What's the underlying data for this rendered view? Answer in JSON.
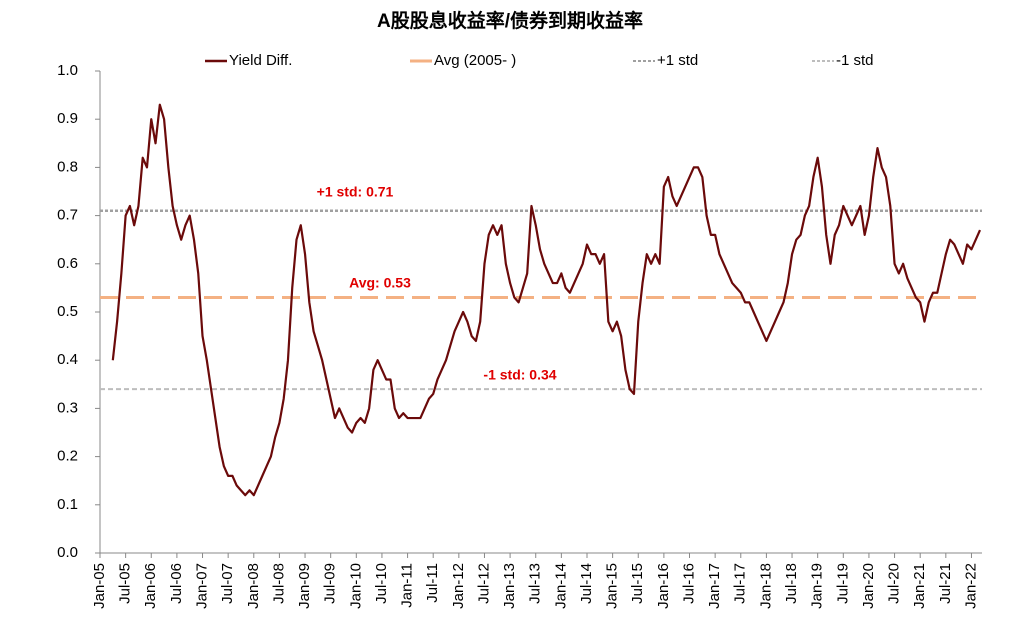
{
  "chart_data": {
    "type": "line",
    "title": "A股股息收益率/债券到期收益率",
    "categories": [
      "Jan-05",
      null,
      null,
      null,
      null,
      null,
      "Jul-05",
      null,
      null,
      null,
      null,
      null,
      "Jan-06",
      null,
      null,
      null,
      null,
      null,
      "Jul-06",
      null,
      null,
      null,
      null,
      null,
      "Jan-07",
      null,
      null,
      null,
      null,
      null,
      "Jul-07",
      null,
      null,
      null,
      null,
      null,
      "Jan-08",
      null,
      null,
      null,
      null,
      null,
      "Jul-08",
      null,
      null,
      null,
      null,
      null,
      "Jan-09",
      null,
      null,
      null,
      null,
      null,
      "Jul-09",
      null,
      null,
      null,
      null,
      null,
      "Jan-10",
      null,
      null,
      null,
      null,
      null,
      "Jul-10",
      null,
      null,
      null,
      null,
      null,
      "Jan-11",
      null,
      null,
      null,
      null,
      null,
      "Jul-11",
      null,
      null,
      null,
      null,
      null,
      "Jan-12",
      null,
      null,
      null,
      null,
      null,
      "Jul-12",
      null,
      null,
      null,
      null,
      null,
      "Jan-13",
      null,
      null,
      null,
      null,
      null,
      "Jul-13",
      null,
      null,
      null,
      null,
      null,
      "Jan-14",
      null,
      null,
      null,
      null,
      null,
      "Jul-14",
      null,
      null,
      null,
      null,
      null,
      "Jan-15",
      null,
      null,
      null,
      null,
      null,
      "Jul-15",
      null,
      null,
      null,
      null,
      null,
      "Jan-16",
      null,
      null,
      null,
      null,
      null,
      "Jul-16",
      null,
      null,
      null,
      null,
      null,
      "Jan-17",
      null,
      null,
      null,
      null,
      null,
      "Jul-17",
      null,
      null,
      null,
      null,
      null,
      "Jan-18",
      null,
      null,
      null,
      null,
      null,
      "Jul-18",
      null,
      null,
      null,
      null,
      null,
      "Jan-19",
      null,
      null,
      null,
      null,
      null,
      "Jul-19",
      null,
      null,
      null,
      null,
      null,
      "Jan-20",
      null,
      null,
      null,
      null,
      null,
      "Jul-20",
      null,
      null,
      null,
      null,
      null,
      "Jan-21",
      null,
      null,
      null,
      null,
      null,
      "Jul-21",
      null,
      null,
      null,
      null,
      null,
      "Jan-22",
      null,
      null
    ],
    "series": [
      {
        "name": "Yield Diff.",
        "color": "#6b0a0a",
        "values": [
          null,
          null,
          null,
          0.4,
          0.48,
          0.58,
          0.7,
          0.72,
          0.68,
          0.72,
          0.82,
          0.8,
          0.9,
          0.85,
          0.93,
          0.9,
          0.8,
          0.72,
          0.68,
          0.65,
          0.68,
          0.7,
          0.65,
          0.58,
          0.45,
          0.4,
          0.34,
          0.28,
          0.22,
          0.18,
          0.16,
          0.16,
          0.14,
          0.13,
          0.12,
          0.13,
          0.12,
          0.14,
          0.16,
          0.18,
          0.2,
          0.24,
          0.27,
          0.32,
          0.4,
          0.55,
          0.65,
          0.68,
          0.62,
          0.52,
          0.46,
          0.43,
          0.4,
          0.36,
          0.32,
          0.28,
          0.3,
          0.28,
          0.26,
          0.25,
          0.27,
          0.28,
          0.27,
          0.3,
          0.38,
          0.4,
          0.38,
          0.36,
          0.36,
          0.3,
          0.28,
          0.29,
          0.28,
          0.28,
          0.28,
          0.28,
          0.3,
          0.32,
          0.33,
          0.36,
          0.38,
          0.4,
          0.43,
          0.46,
          0.48,
          0.5,
          0.48,
          0.45,
          0.44,
          0.48,
          0.6,
          0.66,
          0.68,
          0.66,
          0.68,
          0.6,
          0.56,
          0.53,
          0.52,
          0.55,
          0.58,
          0.72,
          0.68,
          0.63,
          0.6,
          0.58,
          0.56,
          0.56,
          0.58,
          0.55,
          0.54,
          0.56,
          0.58,
          0.6,
          0.64,
          0.62,
          0.62,
          0.6,
          0.62,
          0.48,
          0.46,
          0.48,
          0.45,
          0.38,
          0.34,
          0.33,
          0.48,
          0.56,
          0.62,
          0.6,
          0.62,
          0.6,
          0.76,
          0.78,
          0.74,
          0.72,
          0.74,
          0.76,
          0.78,
          0.8,
          0.8,
          0.78,
          0.7,
          0.66,
          0.66,
          0.62,
          0.6,
          0.58,
          0.56,
          0.55,
          0.54,
          0.52,
          0.52,
          0.5,
          0.48,
          0.46,
          0.44,
          0.46,
          0.48,
          0.5,
          0.52,
          0.56,
          0.62,
          0.65,
          0.66,
          0.7,
          0.72,
          0.78,
          0.82,
          0.76,
          0.66,
          0.6,
          0.66,
          0.68,
          0.72,
          0.7,
          0.68,
          0.7,
          0.72,
          0.66,
          0.7,
          0.78,
          0.84,
          0.8,
          0.78,
          0.72,
          0.6,
          0.58,
          0.6,
          0.57,
          0.55,
          0.53,
          0.52,
          0.48,
          0.52,
          0.54,
          0.54,
          0.58,
          0.62,
          0.65,
          0.64,
          0.62,
          0.6,
          0.64,
          0.63,
          0.65,
          0.67
        ]
      }
    ],
    "reference_lines": [
      {
        "name": "Avg (2005- )",
        "value": 0.53,
        "color": "#f4b183",
        "dash": "18 8",
        "width": 3,
        "annotation": "Avg: 0.53"
      },
      {
        "name": "+1 std",
        "value": 0.71,
        "color": "#a0a0a0",
        "dash": "3 2",
        "width": 2.5,
        "annotation": "+1 std: 0.71"
      },
      {
        "name": "-1 std",
        "value": 0.34,
        "color": "#bdbdbd",
        "dash": "5 3",
        "width": 2,
        "annotation": "-1 std: 0.34"
      }
    ],
    "annotation_color": "#e00000",
    "ylim": [
      0,
      1
    ],
    "yticks": [
      {
        "value": 0,
        "label": "0.0"
      },
      0.1,
      0.2,
      0.3,
      0.4,
      0.5,
      0.6,
      0.7,
      0.8,
      0.9,
      {
        "value": 1,
        "label": "1.0"
      }
    ],
    "grid": false
  }
}
